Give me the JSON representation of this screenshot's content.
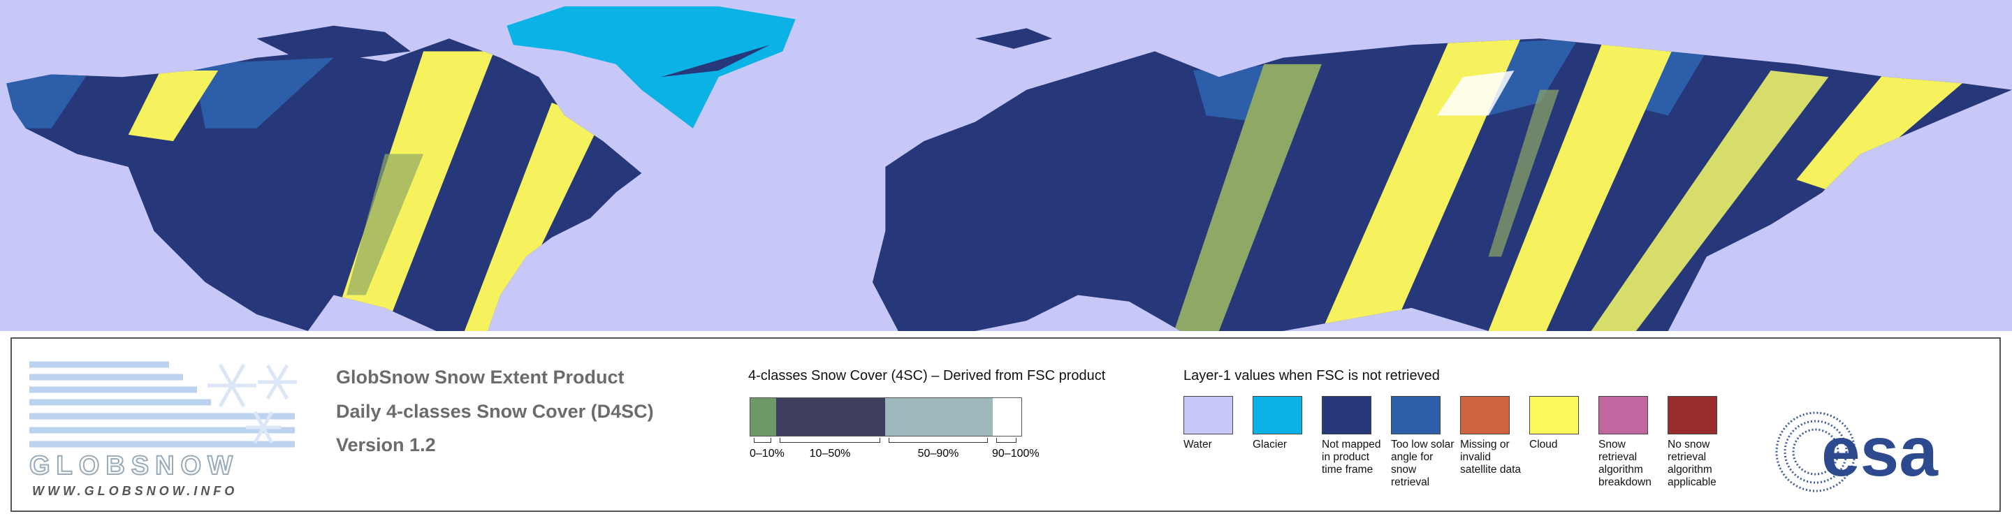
{
  "logo": {
    "name": "GLOBSNOW",
    "url": "WWW.GLOBSNOW.INFO"
  },
  "product": {
    "lines": [
      "GlobSnow Snow Extent Product",
      "Daily 4-classes Snow Cover (D4SC)",
      "Version 1.2"
    ]
  },
  "snow_cover_legend": {
    "title": "4-classes Snow Cover (4SC) – Derived from FSC product",
    "classes": [
      {
        "label": "0–10%",
        "color": "#6e9a6a"
      },
      {
        "label": "10–50%",
        "color": "#3e3f5e"
      },
      {
        "label": "50–90%",
        "color": "#9fb8bc"
      },
      {
        "label": "90–100%",
        "color": "#ffffff"
      }
    ]
  },
  "layer1_legend": {
    "title": "Layer-1 values when FSC is not retrieved",
    "items": [
      {
        "label": "Water",
        "color": "#c8c8f8"
      },
      {
        "label": "Glacier",
        "color": "#0bb2e6"
      },
      {
        "label": "Not mapped in product time frame",
        "color": "#27387a"
      },
      {
        "label": "Too low solar angle for snow retrieval",
        "color": "#2c5eaa"
      },
      {
        "label": "Missing or invalid satellite data",
        "color": "#cf6540"
      },
      {
        "label": "Cloud",
        "color": "#fbfa5c"
      },
      {
        "label": "Snow retrieval algorithm breakdown",
        "color": "#c0679f"
      },
      {
        "label": "No snow retrieval algorithm applicable",
        "color": "#992d2e"
      }
    ]
  },
  "agency": {
    "name": "esa"
  }
}
